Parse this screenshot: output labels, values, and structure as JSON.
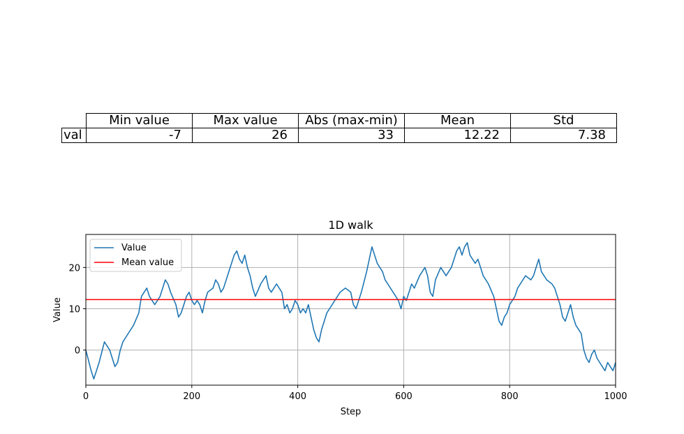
{
  "table": {
    "columns": [
      "Min value",
      "Max value",
      "Abs (max-min)",
      "Mean",
      "Std"
    ],
    "row_label": "val",
    "values": [
      "-7",
      "26",
      "33",
      "12.22",
      "7.38"
    ]
  },
  "chart_data": {
    "type": "line",
    "title": "1D walk",
    "xlabel": "Step",
    "ylabel": "Value",
    "xlim": [
      0,
      1000
    ],
    "ylim": [
      -8.5,
      28
    ],
    "xticks": [
      0,
      200,
      400,
      600,
      800,
      1000
    ],
    "yticks": [
      0,
      10,
      20
    ],
    "grid": true,
    "legend_position": "upper-left",
    "series": [
      {
        "name": "Value",
        "color": "#1f77b4",
        "x": [
          0,
          10,
          15,
          25,
          35,
          40,
          45,
          50,
          55,
          60,
          65,
          70,
          80,
          90,
          100,
          105,
          110,
          115,
          120,
          125,
          130,
          140,
          145,
          150,
          155,
          160,
          170,
          175,
          180,
          185,
          190,
          195,
          200,
          205,
          210,
          215,
          220,
          225,
          230,
          240,
          245,
          250,
          255,
          260,
          265,
          270,
          275,
          280,
          285,
          290,
          295,
          300,
          305,
          310,
          315,
          320,
          330,
          340,
          345,
          350,
          355,
          360,
          370,
          375,
          380,
          385,
          390,
          395,
          400,
          405,
          410,
          415,
          420,
          425,
          430,
          435,
          440,
          445,
          450,
          455,
          460,
          465,
          470,
          480,
          490,
          500,
          505,
          510,
          520,
          530,
          535,
          540,
          545,
          550,
          555,
          560,
          565,
          570,
          580,
          590,
          595,
          600,
          605,
          610,
          615,
          620,
          630,
          640,
          645,
          650,
          655,
          660,
          670,
          680,
          690,
          700,
          705,
          710,
          715,
          720,
          725,
          730,
          735,
          740,
          745,
          750,
          760,
          770,
          775,
          780,
          785,
          790,
          795,
          800,
          805,
          810,
          815,
          820,
          830,
          840,
          845,
          850,
          855,
          860,
          870,
          880,
          885,
          890,
          895,
          900,
          905,
          910,
          915,
          920,
          925,
          930,
          935,
          940,
          945,
          950,
          955,
          960,
          965,
          970,
          975,
          980,
          985,
          990,
          995,
          1000
        ],
        "values": [
          0,
          -5,
          -7,
          -3,
          2,
          1,
          0,
          -2,
          -4,
          -3,
          0,
          2,
          4,
          6,
          9,
          13,
          14,
          15,
          13,
          12,
          11,
          13,
          15,
          17,
          16,
          14,
          11,
          8,
          9,
          11,
          13,
          14,
          12,
          11,
          12,
          11,
          9,
          12,
          14,
          15,
          17,
          16,
          14,
          15,
          17,
          19,
          21,
          23,
          24,
          22,
          21,
          23,
          20,
          18,
          15,
          13,
          16,
          18,
          15,
          14,
          15,
          16,
          14,
          10,
          11,
          9,
          10,
          12,
          11,
          9,
          10,
          9,
          11,
          8,
          5,
          3,
          2,
          5,
          7,
          9,
          10,
          11,
          12,
          14,
          15,
          14,
          11,
          10,
          14,
          19,
          22,
          25,
          23,
          21,
          20,
          19,
          17,
          16,
          14,
          12,
          10,
          13,
          12,
          14,
          16,
          15,
          18,
          20,
          18,
          14,
          13,
          17,
          20,
          18,
          20,
          24,
          25,
          23,
          25,
          26,
          23,
          22,
          21,
          22,
          20,
          18,
          16,
          13,
          10,
          7,
          6,
          8,
          9,
          11,
          12,
          13,
          15,
          16,
          18,
          17,
          18,
          20,
          22,
          19,
          17,
          16,
          15,
          13,
          11,
          8,
          7,
          9,
          11,
          8,
          6,
          5,
          4,
          0,
          -2,
          -3,
          -1,
          0,
          -2,
          -3,
          -4,
          -5,
          -3,
          -4,
          -5,
          -3
        ]
      },
      {
        "name": "Mean value",
        "color": "#ff0000",
        "values": [
          12.22
        ]
      }
    ]
  }
}
